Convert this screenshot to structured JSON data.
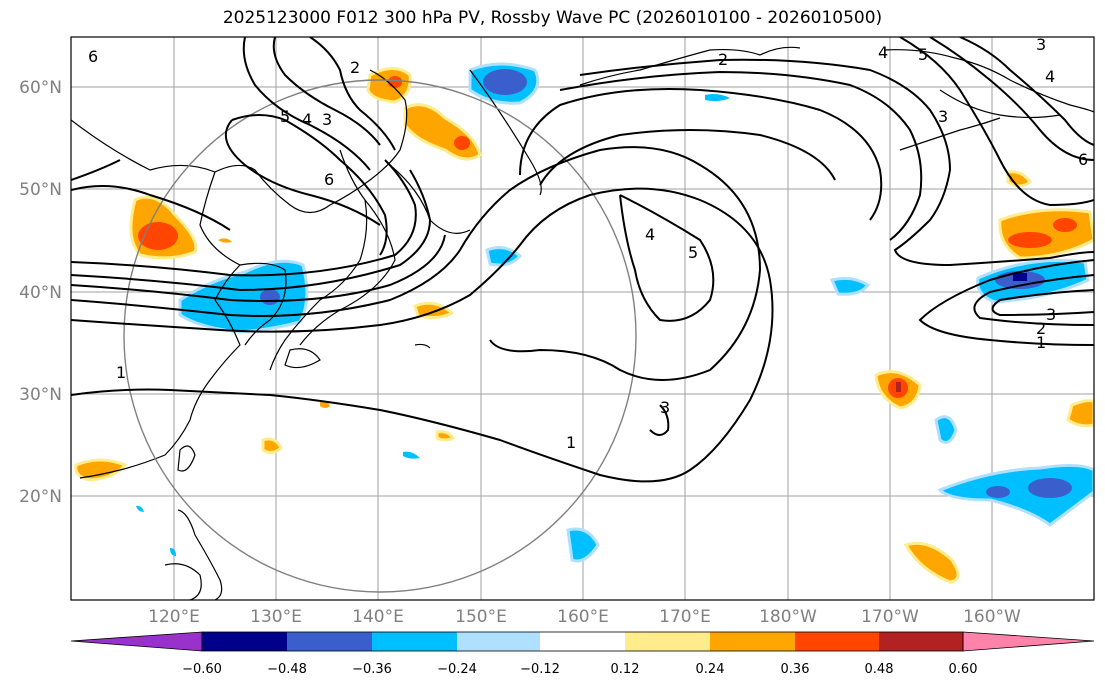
{
  "title": "2025123000 F012 300 hPa PV, Rossby Wave PC (2026010100 - 2026010500)",
  "lat_labels": [
    "60°N",
    "50°N",
    "40°N",
    "30°N",
    "20°N"
  ],
  "lon_labels": [
    "120°E",
    "130°E",
    "140°E",
    "150°E",
    "160°E",
    "170°E",
    "180°W",
    "170°W",
    "160°W"
  ],
  "colorbar": {
    "ticks": [
      "−0.60",
      "−0.48",
      "−0.36",
      "−0.24",
      "−0.12",
      "0.12",
      "0.24",
      "0.36",
      "0.48",
      "0.60"
    ],
    "colors": [
      "#9932cc",
      "#00008b",
      "#3a5fcd",
      "#00bfff",
      "#b0e0ff",
      "#ffffff",
      "#ffec8b",
      "#ffa500",
      "#ff4500",
      "#b22222",
      "#ff82ab"
    ]
  },
  "contour_labels": {
    "c1": "6",
    "c2": "2",
    "c3": "5",
    "c4": "4",
    "c5": "3",
    "c6": "6",
    "c7": "2",
    "c8": "4",
    "c9": "5",
    "c10": "3",
    "c11": "1",
    "c12": "1",
    "c13": "3",
    "c14": "2",
    "c15": "1",
    "c16": "5",
    "c17": "4",
    "c18": "3",
    "c19": "6",
    "c20": "3",
    "c21": "4"
  }
}
